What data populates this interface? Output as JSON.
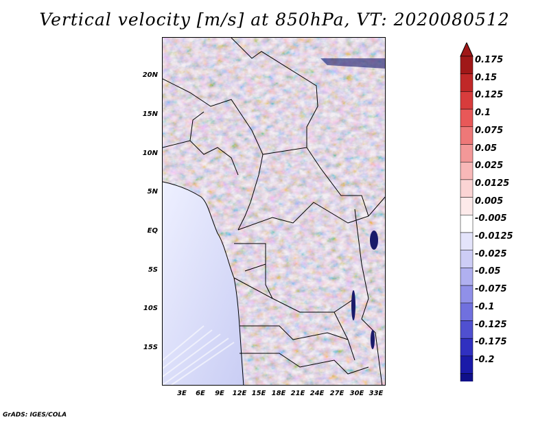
{
  "title": "Vertical velocity [m/s] at 850hPa, VT: 2020080512",
  "footer": "GrADS: IGES/COLA",
  "map": {
    "lat_ticks": [
      "20N",
      "15N",
      "10N",
      "5N",
      "EQ",
      "5S",
      "10S",
      "15S"
    ],
    "lon_ticks": [
      "3E",
      "6E",
      "9E",
      "12E",
      "15E",
      "18E",
      "21E",
      "24E",
      "27E",
      "30E",
      "33E"
    ]
  },
  "colorbar": {
    "labels": [
      "0.175",
      "0.15",
      "0.125",
      "0.1",
      "0.075",
      "0.05",
      "0.025",
      "0.0125",
      "0.005",
      "-0.005",
      "-0.0125",
      "-0.025",
      "-0.05",
      "-0.075",
      "-0.1",
      "-0.125",
      "-0.175",
      "-0.2"
    ],
    "colors": [
      "#a01818",
      "#c02828",
      "#d83c3c",
      "#e85858",
      "#ee7878",
      "#f39898",
      "#f8b8b8",
      "#fbd4d4",
      "#fdeaea",
      "#ffffff",
      "#e4e4fb",
      "#cdcdf6",
      "#b0b0f0",
      "#9090e8",
      "#7070de",
      "#5050d0",
      "#3030c0",
      "#1a1aa8",
      "#10108a"
    ],
    "top_arrow_color": "#a01818",
    "bottom_arrow_color": "#10108a"
  }
}
